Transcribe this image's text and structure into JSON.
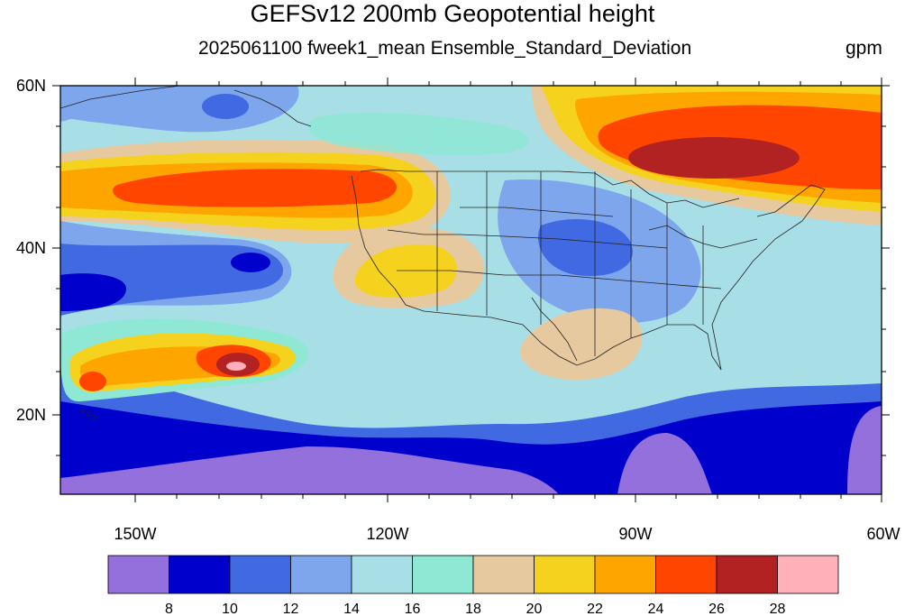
{
  "title": "GEFSv12 200mb Geopotential height",
  "subtitle": "2025061100 fweek1_mean Ensemble_Standard_Deviation",
  "units": "gpm",
  "map": {
    "lon_range": [
      -160,
      -60
    ],
    "lat_range": [
      10,
      60
    ],
    "x_ticks": [
      "150W",
      "120W",
      "90W",
      "60W"
    ],
    "y_ticks": [
      "60N",
      "40N",
      "20N"
    ]
  },
  "colorbar": {
    "labels": [
      "8",
      "10",
      "12",
      "14",
      "16",
      "18",
      "20",
      "22",
      "24",
      "26",
      "28"
    ],
    "colors": [
      "#9370db",
      "#0000cd",
      "#4169e1",
      "#7ea6ec",
      "#a8dfe6",
      "#8ee8d4",
      "#e6c99f",
      "#f5d21e",
      "#ffa500",
      "#ff4500",
      "#b22222",
      "#ffb0b8"
    ]
  }
}
